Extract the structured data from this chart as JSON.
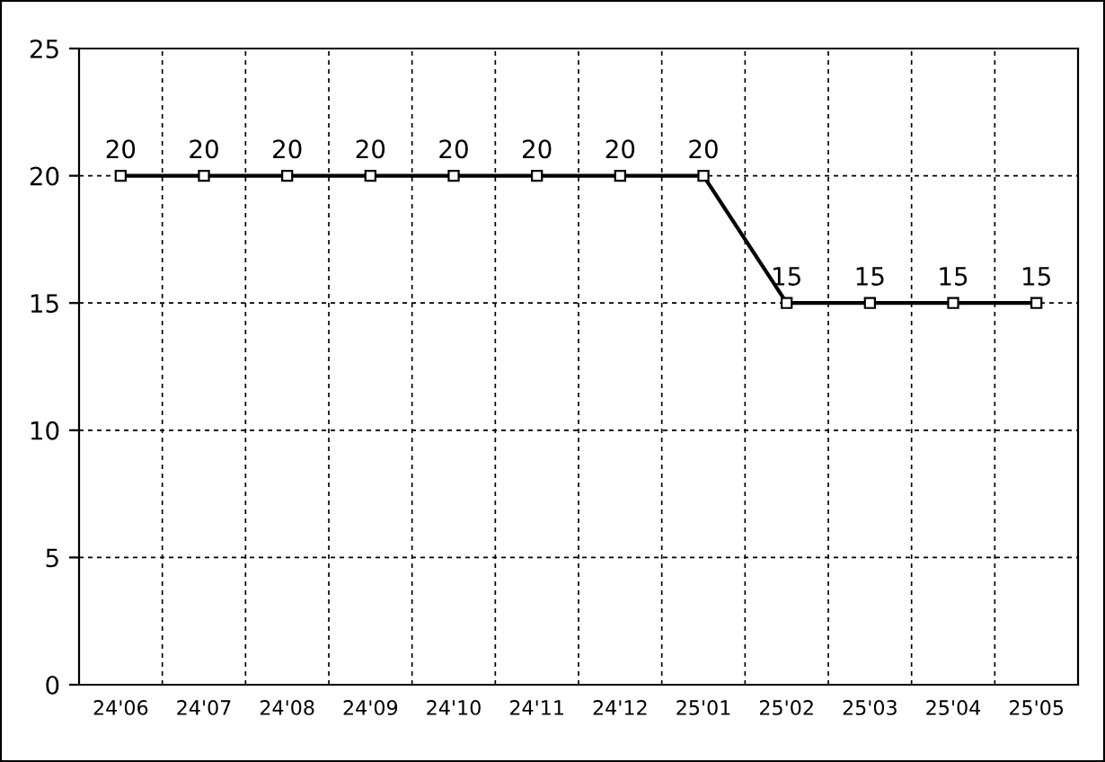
{
  "chart_data": {
    "type": "line",
    "categories": [
      "24'06",
      "24'07",
      "24'08",
      "24'09",
      "24'10",
      "24'11",
      "24'12",
      "25'01",
      "25'02",
      "25'03",
      "25'04",
      "25'05"
    ],
    "series": [
      {
        "color": "#000000",
        "values": [
          20,
          20,
          20,
          20,
          20,
          20,
          20,
          20,
          15,
          15,
          15,
          15
        ]
      }
    ],
    "ylim": [
      0,
      25
    ],
    "yticks": [
      0,
      5,
      10,
      15,
      20,
      25
    ],
    "grid": true,
    "marker": "square",
    "line_style": "solid",
    "data_labels": true,
    "legend": false
  }
}
